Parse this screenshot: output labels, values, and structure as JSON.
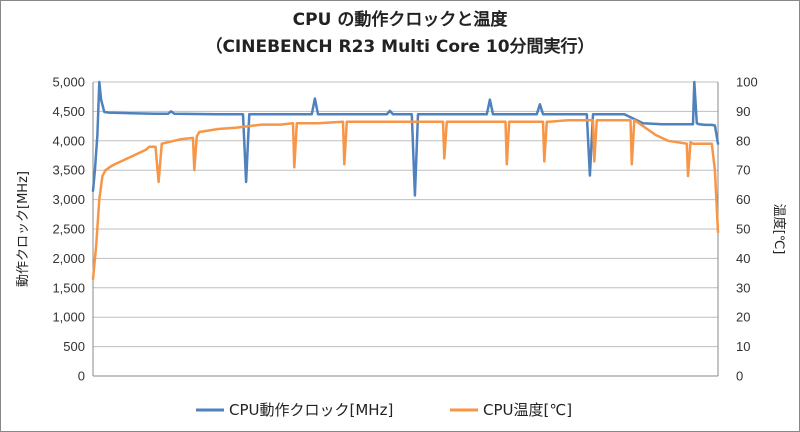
{
  "chart_data": {
    "type": "line",
    "title": "CPU の動作クロックと温度",
    "subtitle": "（CINEBENCH R23 Multi Core 10分間実行）",
    "ylabel_left": "動作クロック[MHz]",
    "ylabel_right": "温度[℃]",
    "ylim_left": [
      0,
      5000
    ],
    "ylim_right": [
      0,
      100
    ],
    "yticks_left": [
      "0",
      "500",
      "1,000",
      "1,500",
      "2,000",
      "2,500",
      "3,000",
      "3,500",
      "4,000",
      "4,500",
      "5,000"
    ],
    "yticks_right": [
      "0",
      "10",
      "20",
      "30",
      "40",
      "50",
      "60",
      "70",
      "80",
      "90",
      "100"
    ],
    "xlim": [
      0,
      100
    ],
    "grid": true,
    "legend_position": "bottom",
    "series": [
      {
        "name": "CPU動作クロック[MHz]",
        "axis": "left",
        "color": "#4f81bd",
        "x": [
          0,
          0.3,
          0.7,
          1.0,
          1.3,
          1.8,
          2.5,
          6,
          10,
          12,
          12.5,
          13,
          20,
          24,
          24.5,
          25,
          30,
          35,
          35.5,
          36,
          40,
          47,
          47.5,
          48,
          51,
          51.5,
          52,
          55,
          60,
          63,
          63.5,
          64,
          70,
          71,
          71.5,
          72,
          79,
          79.5,
          80,
          85,
          88,
          91,
          94,
          96,
          96.2,
          96.6,
          97,
          98,
          99,
          99.5,
          100
        ],
        "values": [
          3150,
          3500,
          4100,
          5000,
          4700,
          4490,
          4480,
          4470,
          4460,
          4460,
          4500,
          4460,
          4450,
          4450,
          3300,
          4450,
          4450,
          4450,
          4720,
          4450,
          4450,
          4450,
          4510,
          4450,
          4450,
          3070,
          4450,
          4450,
          4450,
          4450,
          4700,
          4450,
          4450,
          4450,
          4620,
          4450,
          4450,
          3410,
          4450,
          4450,
          4300,
          4280,
          4280,
          4280,
          5000,
          4300,
          4280,
          4270,
          4270,
          4260,
          3950
        ]
      },
      {
        "name": "CPU温度[℃]",
        "axis": "right",
        "color": "#f79646",
        "x": [
          0,
          0.5,
          1.0,
          1.5,
          2.0,
          3.0,
          4.0,
          5.0,
          6.0,
          7.0,
          8.0,
          8.5,
          9.0,
          10,
          10.5,
          11,
          14,
          16,
          16.2,
          16.6,
          17,
          20,
          23,
          25,
          27,
          30,
          32,
          32.2,
          32.6,
          33,
          36,
          40,
          40.2,
          40.6,
          41,
          44,
          48,
          56,
          56.2,
          56.6,
          57,
          60,
          64,
          66,
          66.2,
          66.6,
          67,
          72,
          72.2,
          72.6,
          73,
          76,
          80,
          80.2,
          80.6,
          81,
          86,
          86.2,
          86.6,
          87,
          90,
          92,
          95,
          95.2,
          95.6,
          96,
          98,
          99,
          99.5,
          100
        ],
        "values": [
          33,
          44,
          60,
          68,
          70,
          71.5,
          72.5,
          73.5,
          74.5,
          75.5,
          76.5,
          77,
          78,
          78,
          66,
          79,
          80.5,
          81,
          70,
          81.5,
          83,
          84,
          84.5,
          85,
          85.5,
          85.5,
          86,
          71,
          86,
          86,
          86,
          86.5,
          72,
          86.5,
          86.5,
          86.5,
          86.5,
          86.5,
          74,
          86.5,
          86.5,
          86.5,
          86.5,
          86.5,
          72,
          86.5,
          86.5,
          86.5,
          73,
          86.5,
          86.5,
          87,
          87,
          73,
          87,
          87,
          87,
          72,
          87,
          86.5,
          82,
          80,
          79,
          68,
          79.5,
          79,
          79,
          79,
          70,
          49
        ]
      }
    ]
  }
}
